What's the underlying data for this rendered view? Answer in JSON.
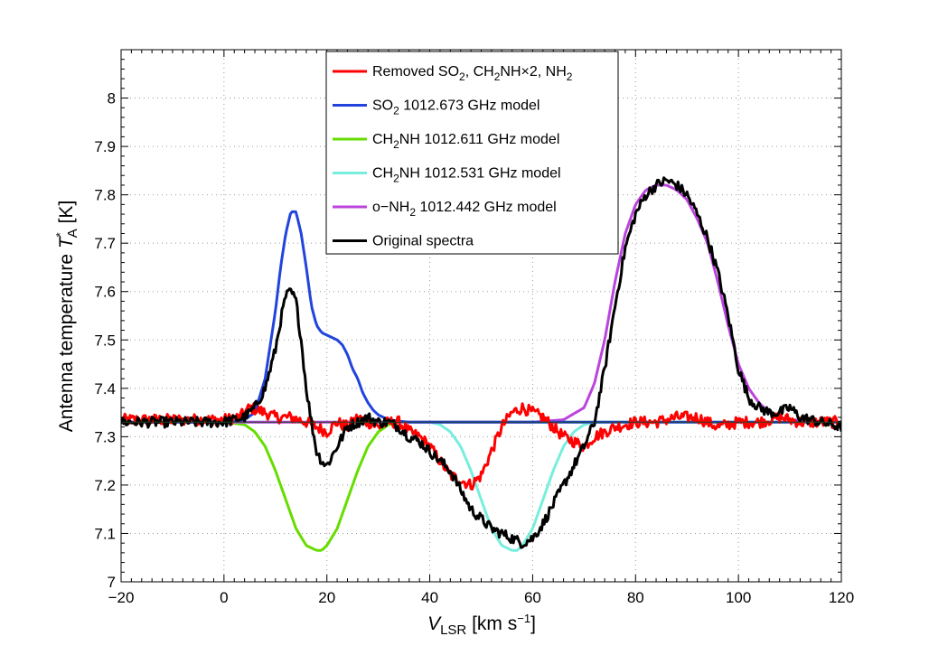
{
  "chart_data": {
    "type": "line",
    "title": "",
    "xlabel_parts": {
      "main": "V",
      "sub": "LSR",
      "unit": " [km s",
      "sup": "−1",
      "close": "]"
    },
    "ylabel_parts": {
      "pre": "Antenna temperature  ",
      "main": "T",
      "sup": "*",
      "sub": "A",
      "unit": " [K]"
    },
    "xlim": [
      -20,
      120
    ],
    "ylim": [
      7.0,
      8.1
    ],
    "xticks": [
      -20,
      0,
      20,
      40,
      60,
      80,
      100,
      120
    ],
    "xtick_labels": [
      "−20",
      "0",
      "20",
      "40",
      "60",
      "80",
      "100",
      "120"
    ],
    "yticks": [
      7.0,
      7.1,
      7.2,
      7.3,
      7.4,
      7.5,
      7.6,
      7.7,
      7.8,
      7.9,
      8.0
    ],
    "ytick_labels": [
      "7",
      "7.1",
      "7.2",
      "7.3",
      "7.4",
      "7.5",
      "7.6",
      "7.7",
      "7.8",
      "7.9",
      "8"
    ],
    "grid": true,
    "legend_position": "top-center",
    "baseline": 7.33,
    "series": [
      {
        "name": "Removed SO2, CH2NH×2, NH2",
        "label_parts": [
          [
            "t",
            "Removed SO"
          ],
          [
            "sub",
            "2"
          ],
          [
            "t",
            ", CH"
          ],
          [
            "sub",
            "2"
          ],
          [
            "t",
            "NH×2, NH"
          ],
          [
            "sub",
            "2"
          ]
        ],
        "color": "#ff0000",
        "noisy": true,
        "x": [
          -20,
          -5,
          0,
          3,
          5,
          8,
          10,
          13,
          16,
          18,
          20,
          22,
          24,
          26,
          28,
          30,
          32,
          34,
          36,
          38,
          40,
          42,
          44,
          46,
          48,
          50,
          52,
          54,
          56,
          58,
          60,
          62,
          64,
          66,
          68,
          70,
          72,
          74,
          76,
          80,
          84,
          88,
          92,
          96,
          100,
          104,
          108,
          112,
          116,
          120
        ],
        "y": [
          7.335,
          7.335,
          7.335,
          7.34,
          7.36,
          7.35,
          7.34,
          7.34,
          7.33,
          7.32,
          7.31,
          7.33,
          7.32,
          7.34,
          7.33,
          7.32,
          7.33,
          7.33,
          7.31,
          7.3,
          7.28,
          7.25,
          7.22,
          7.21,
          7.2,
          7.22,
          7.27,
          7.32,
          7.35,
          7.36,
          7.35,
          7.34,
          7.32,
          7.3,
          7.29,
          7.28,
          7.3,
          7.31,
          7.32,
          7.33,
          7.33,
          7.34,
          7.34,
          7.32,
          7.33,
          7.33,
          7.34,
          7.33,
          7.33,
          7.33
        ]
      },
      {
        "name": "SO2 1012.673 GHz model",
        "label_parts": [
          [
            "t",
            "SO"
          ],
          [
            "sub",
            "2"
          ],
          [
            "t",
            " 1012.673 GHz model"
          ]
        ],
        "color": "#2244dd",
        "noisy": false,
        "x": [
          -20,
          0,
          4,
          6,
          8,
          10,
          11,
          12,
          13,
          14,
          15,
          16,
          17,
          18,
          19,
          20,
          21,
          22,
          23,
          24,
          25,
          26,
          27,
          28,
          29,
          30,
          32,
          34,
          36,
          40,
          60,
          120
        ],
        "y": [
          7.33,
          7.33,
          7.335,
          7.35,
          7.42,
          7.56,
          7.65,
          7.72,
          7.765,
          7.765,
          7.72,
          7.65,
          7.57,
          7.53,
          7.515,
          7.51,
          7.505,
          7.5,
          7.49,
          7.47,
          7.44,
          7.42,
          7.39,
          7.37,
          7.355,
          7.345,
          7.335,
          7.332,
          7.33,
          7.33,
          7.33,
          7.33
        ]
      },
      {
        "name": "CH2NH 1012.611 GHz model",
        "label_parts": [
          [
            "t",
            "CH"
          ],
          [
            "sub",
            "2"
          ],
          [
            "t",
            "NH 1012.611 GHz model"
          ]
        ],
        "color": "#66dd00",
        "noisy": false,
        "x": [
          -20,
          0,
          4,
          6,
          8,
          10,
          12,
          14,
          16,
          18,
          19,
          20,
          22,
          24,
          26,
          28,
          30,
          32,
          34,
          120
        ],
        "y": [
          7.33,
          7.33,
          7.325,
          7.31,
          7.28,
          7.23,
          7.17,
          7.11,
          7.075,
          7.065,
          7.065,
          7.075,
          7.11,
          7.17,
          7.23,
          7.28,
          7.31,
          7.325,
          7.33,
          7.33
        ]
      },
      {
        "name": "CH2NH 1012.531 GHz model",
        "label_parts": [
          [
            "t",
            "CH"
          ],
          [
            "sub",
            "2"
          ],
          [
            "t",
            "NH 1012.531 GHz model"
          ]
        ],
        "color": "#77eedd",
        "noisy": false,
        "x": [
          -20,
          40,
          42,
          44,
          46,
          48,
          50,
          52,
          54,
          56,
          57,
          58,
          60,
          62,
          64,
          66,
          68,
          70,
          72,
          120
        ],
        "y": [
          7.33,
          7.33,
          7.325,
          7.31,
          7.28,
          7.23,
          7.17,
          7.11,
          7.075,
          7.065,
          7.065,
          7.075,
          7.11,
          7.17,
          7.23,
          7.28,
          7.31,
          7.325,
          7.33,
          7.33
        ]
      },
      {
        "name": "o-NH2 1012.442 GHz model",
        "label_parts": [
          [
            "t",
            "o−NH"
          ],
          [
            "sub",
            "2"
          ],
          [
            "t",
            " 1012.442 GHz model"
          ]
        ],
        "color": "#bb44dd",
        "noisy": false,
        "x": [
          -20,
          60,
          66,
          70,
          72,
          74,
          76,
          78,
          80,
          82,
          84,
          86,
          88,
          90,
          92,
          94,
          96,
          98,
          100,
          102,
          104,
          106,
          108,
          110,
          120
        ],
        "y": [
          7.33,
          7.33,
          7.335,
          7.36,
          7.41,
          7.5,
          7.62,
          7.72,
          7.78,
          7.81,
          7.82,
          7.82,
          7.81,
          7.79,
          7.75,
          7.7,
          7.62,
          7.53,
          7.45,
          7.4,
          7.37,
          7.35,
          7.34,
          7.335,
          7.33
        ]
      },
      {
        "name": "Original spectra",
        "label_parts": [
          [
            "t",
            "Original spectra"
          ]
        ],
        "color": "#000000",
        "noisy": true,
        "x": [
          -20,
          -10,
          0,
          4,
          6,
          8,
          10,
          11,
          12,
          13,
          14,
          15,
          16,
          17,
          18,
          19,
          20,
          22,
          24,
          26,
          28,
          30,
          32,
          34,
          36,
          38,
          40,
          42,
          44,
          46,
          48,
          50,
          52,
          54,
          56,
          58,
          60,
          62,
          64,
          66,
          68,
          70,
          72,
          74,
          76,
          78,
          80,
          82,
          84,
          86,
          88,
          90,
          92,
          94,
          96,
          98,
          100,
          102,
          104,
          106,
          108,
          110,
          112,
          116,
          120
        ],
        "y": [
          7.33,
          7.33,
          7.33,
          7.34,
          7.36,
          7.4,
          7.48,
          7.54,
          7.59,
          7.6,
          7.58,
          7.5,
          7.4,
          7.33,
          7.27,
          7.25,
          7.24,
          7.28,
          7.32,
          7.33,
          7.34,
          7.33,
          7.33,
          7.32,
          7.3,
          7.29,
          7.27,
          7.25,
          7.23,
          7.19,
          7.15,
          7.13,
          7.11,
          7.1,
          7.09,
          7.08,
          7.09,
          7.12,
          7.16,
          7.2,
          7.24,
          7.28,
          7.33,
          7.44,
          7.57,
          7.69,
          7.76,
          7.8,
          7.82,
          7.83,
          7.82,
          7.8,
          7.76,
          7.71,
          7.64,
          7.55,
          7.44,
          7.38,
          7.36,
          7.35,
          7.35,
          7.36,
          7.34,
          7.33,
          7.32
        ]
      }
    ]
  }
}
